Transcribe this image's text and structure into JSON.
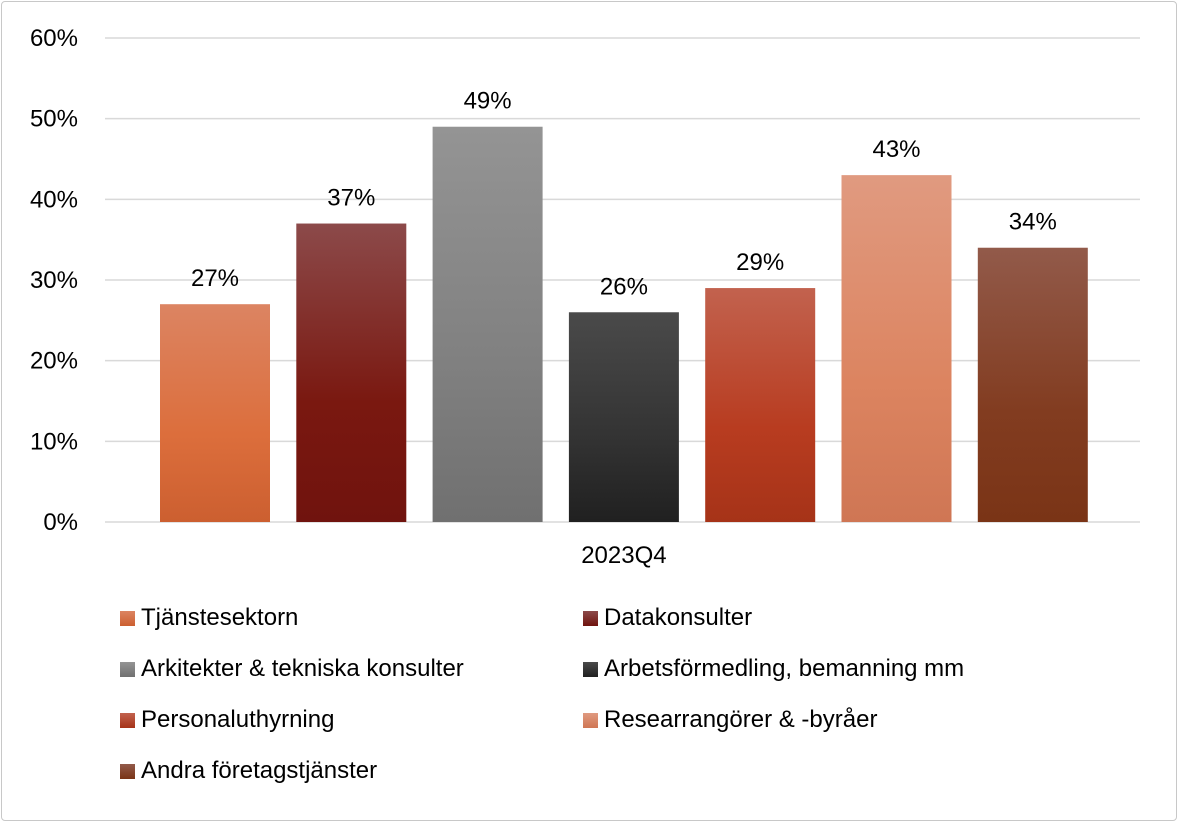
{
  "chart_data": {
    "type": "bar",
    "title": "",
    "xlabel": "",
    "ylabel": "",
    "categories": [
      "2023Q4"
    ],
    "series": [
      {
        "name": "Tjänstesektorn",
        "values": [
          27
        ],
        "label": "27%",
        "color": "#dc6e3c",
        "top": "#dc8462",
        "bottom": "#cc5f30"
      },
      {
        "name": "Datakonsulter",
        "values": [
          37
        ],
        "label": "37%",
        "color": "#7a1810",
        "top": "#8c4a4a",
        "bottom": "#70130e"
      },
      {
        "name": "Arkitekter & tekniska konsulter",
        "values": [
          49
        ],
        "label": "49%",
        "color": "#808080",
        "top": "#949494",
        "bottom": "#707070"
      },
      {
        "name": "Arbetsförmedling, bemanning mm",
        "values": [
          26
        ],
        "label": "26%",
        "color": "#333333",
        "top": "#4a4a4a",
        "bottom": "#202020"
      },
      {
        "name": "Personaluthyrning",
        "values": [
          29
        ],
        "label": "29%",
        "color": "#b83c20",
        "top": "#c2624e",
        "bottom": "#a63318"
      },
      {
        "name": "Researrangörer & -byråer",
        "values": [
          43
        ],
        "label": "43%",
        "color": "#dc8460",
        "top": "#e09a80",
        "bottom": "#cf7654"
      },
      {
        "name": "Andra företagstjänster",
        "values": [
          34
        ],
        "label": "34%",
        "color": "#823c20",
        "top": "#925a4a",
        "bottom": "#7a3416"
      }
    ],
    "ylim": [
      0,
      60
    ],
    "yticks": [
      0,
      10,
      20,
      30,
      40,
      50,
      60
    ],
    "ytick_labels": [
      "0%",
      "10%",
      "20%",
      "30%",
      "40%",
      "50%",
      "60%"
    ],
    "grid": true,
    "legend_position": "bottom"
  }
}
